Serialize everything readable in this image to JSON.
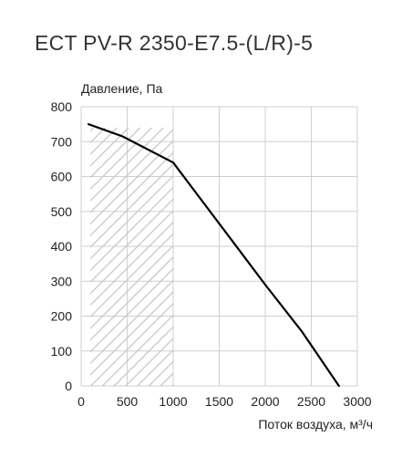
{
  "chart_data": {
    "type": "line",
    "title": "ECT PV-R 2350-E7.5-(L/R)-5",
    "ylabel": "Давление, Па",
    "xlabel": "Поток воздуха, м³/ч",
    "xlim": [
      0,
      3000
    ],
    "ylim": [
      0,
      800
    ],
    "x_ticks": [
      "0",
      "500",
      "1000",
      "1500",
      "2000",
      "2500",
      "3000"
    ],
    "y_ticks": [
      "0",
      "100",
      "200",
      "300",
      "400",
      "500",
      "600",
      "700",
      "800"
    ],
    "grid": true,
    "shaded_region": {
      "x_from": 100,
      "x_to": 1000,
      "y_from": 0,
      "y_to": 740,
      "pattern": "diagonal-hatch"
    },
    "series": [
      {
        "x": [
          80,
          450,
          1000,
          1200,
          1600,
          2000,
          2400,
          2800
        ],
        "y": [
          750,
          715,
          640,
          570,
          430,
          290,
          155,
          0
        ],
        "color": "#000000"
      }
    ]
  }
}
